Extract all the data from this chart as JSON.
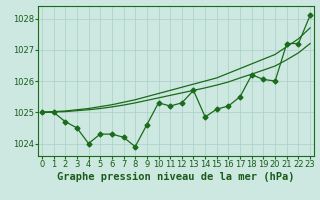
{
  "xlabel": "Graphe pression niveau de la mer (hPa)",
  "x": [
    0,
    1,
    2,
    3,
    4,
    5,
    6,
    7,
    8,
    9,
    10,
    11,
    12,
    13,
    14,
    15,
    16,
    17,
    18,
    19,
    20,
    21,
    22,
    23
  ],
  "line_jagged": [
    1025.0,
    1025.0,
    1024.7,
    1024.5,
    1024.0,
    1024.3,
    1024.3,
    1024.2,
    1023.9,
    1024.6,
    1025.3,
    1025.2,
    1025.3,
    1025.7,
    1024.85,
    1025.1,
    1025.2,
    1025.5,
    1026.2,
    1026.05,
    1026.0,
    1027.2,
    1027.2,
    1028.1
  ],
  "line_trend1": [
    1025.0,
    1025.02,
    1025.04,
    1025.08,
    1025.12,
    1025.18,
    1025.24,
    1025.32,
    1025.4,
    1025.5,
    1025.6,
    1025.7,
    1025.8,
    1025.9,
    1026.0,
    1026.1,
    1026.25,
    1026.4,
    1026.55,
    1026.7,
    1026.85,
    1027.1,
    1027.35,
    1027.7
  ],
  "line_trend2": [
    1025.0,
    1025.01,
    1025.02,
    1025.05,
    1025.08,
    1025.12,
    1025.17,
    1025.23,
    1025.3,
    1025.38,
    1025.46,
    1025.54,
    1025.62,
    1025.7,
    1025.78,
    1025.87,
    1025.97,
    1026.1,
    1026.22,
    1026.35,
    1026.48,
    1026.68,
    1026.9,
    1027.2
  ],
  "ylim": [
    1023.6,
    1028.4
  ],
  "yticks": [
    1024,
    1025,
    1026,
    1027,
    1028
  ],
  "bg_color": "#cce8e0",
  "grid_color": "#aacfc8",
  "line_color": "#1a6b1a",
  "marker": "D",
  "marker_size": 2.5,
  "linewidth": 0.9,
  "font_color": "#1a5c1a",
  "xlabel_fontsize": 7.5,
  "tick_fontsize": 6.0
}
